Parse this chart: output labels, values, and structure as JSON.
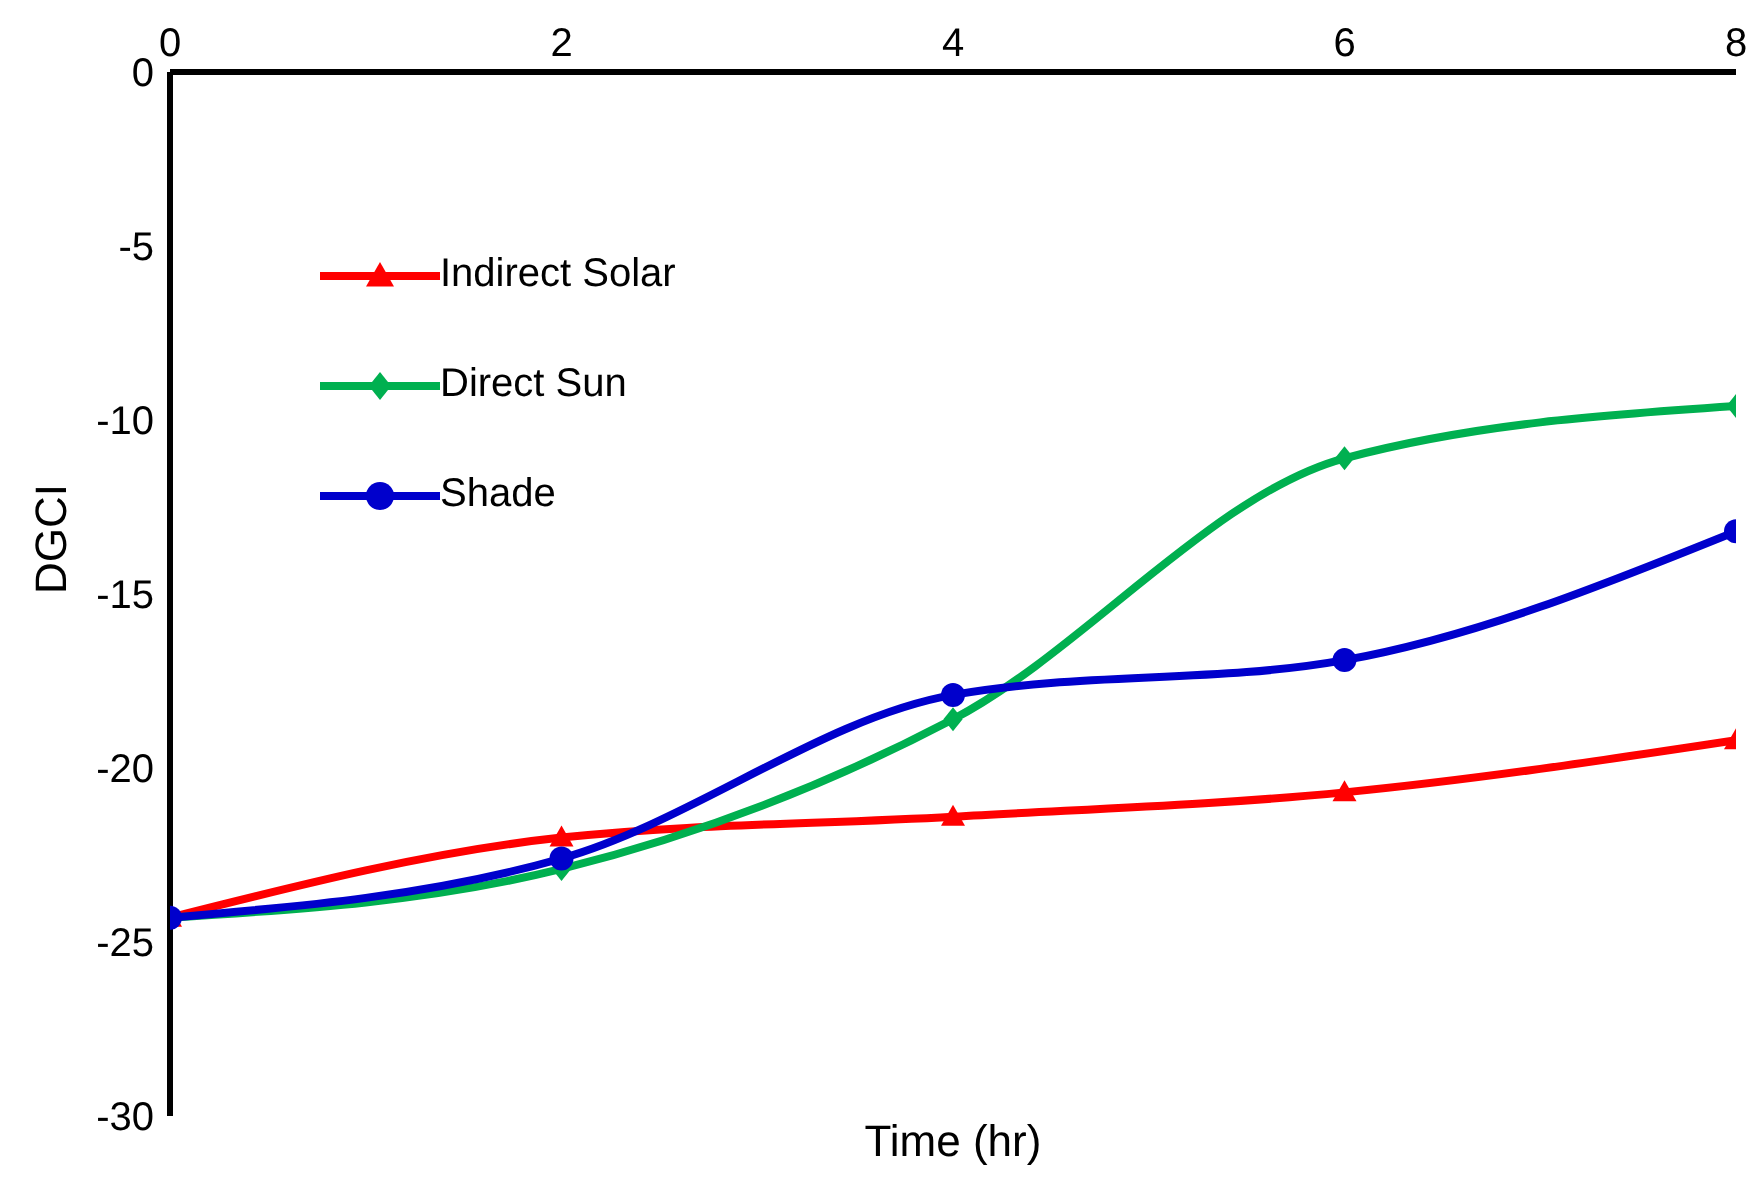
{
  "chart_data": {
    "type": "line",
    "xlabel": "Time (hr)",
    "ylabel": "DGCI",
    "x": [
      0,
      2,
      4,
      6,
      8
    ],
    "series": [
      {
        "name": "Indirect Solar",
        "color": "#ff0000",
        "marker": "triangle",
        "values": [
          -24.3,
          -22.0,
          -21.4,
          -20.7,
          -19.2
        ]
      },
      {
        "name": "Direct Sun",
        "color": "#00b050",
        "marker": "diamond",
        "values": [
          -24.3,
          -22.9,
          -18.6,
          -11.1,
          -9.6
        ]
      },
      {
        "name": "Shade",
        "color": "#0000cc",
        "marker": "circle",
        "values": [
          -24.3,
          -22.6,
          -17.9,
          -16.9,
          -13.2
        ]
      }
    ],
    "xlim": [
      0,
      8
    ],
    "xticks": [
      0,
      2,
      4,
      6,
      8
    ],
    "ylim": [
      -30,
      0
    ],
    "yticks": [
      -30,
      -25,
      -20,
      -15,
      -10,
      -5,
      0
    ],
    "grid": false,
    "legend": "top left",
    "line_style": "solid"
  }
}
